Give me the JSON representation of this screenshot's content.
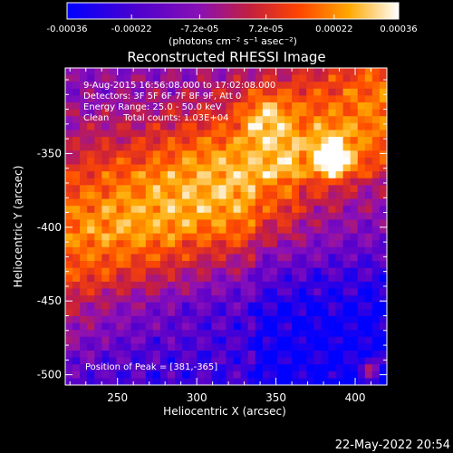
{
  "chart_data": {
    "type": "heatmap",
    "title": "Reconstructed RHESSI Image",
    "xlabel": "Heliocentric X (arcsec)",
    "ylabel": "Heliocentric Y (arcsec)",
    "xlim": [
      217,
      420
    ],
    "ylim": [
      -507,
      -292
    ],
    "x_ticks": [
      250,
      300,
      350,
      400
    ],
    "y_ticks": [
      -350,
      -400,
      -450,
      -500
    ],
    "colorbar": {
      "range": [
        -0.00036,
        0.00036
      ],
      "tick_values": [
        -0.00036,
        -0.00022,
        -7.2e-05,
        7.2e-05,
        0.00022,
        0.00036
      ],
      "tick_labels": [
        "-0.00036",
        "-0.00022",
        "-7.2e-05",
        "7.2e-05",
        "0.00022",
        "0.00036"
      ],
      "unit_label": "(photons cm⁻² s⁻¹ asec⁻²)",
      "colormap": [
        "#0000ff",
        "#5500cc",
        "#8b10b8",
        "#c81f3c",
        "#ff4a00",
        "#ffaa00",
        "#ffffff"
      ]
    },
    "annotations": {
      "time_range": "9-Aug-2015 16:56:08.000 to 17:02:08.000",
      "detectors": "Detectors: 3F 5F 6F 7F 8F 9F, Att 0",
      "energy": "Energy Range: 25.0 - 50.0 keV",
      "clean": "Clean     Total counts: 1.03E+04",
      "peak": "Position of Peak = [381,-365]"
    },
    "peak_position": [
      381,
      -365
    ],
    "image_grid": {
      "cols": 44,
      "rows": 46
    }
  },
  "footer": {
    "timestamp": "22-May-2022 20:54"
  }
}
